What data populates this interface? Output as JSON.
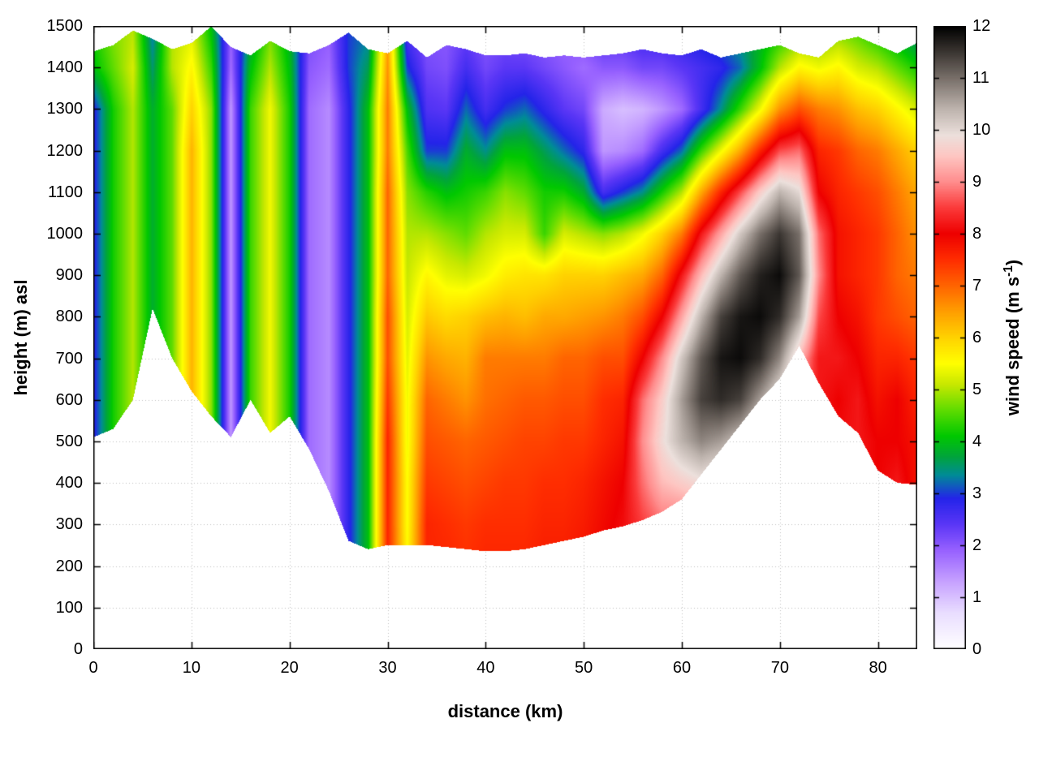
{
  "chart_data": {
    "type": "heatmap",
    "title": "",
    "xlabel": "distance (km)",
    "ylabel": "height (m) asl",
    "colorbar_label": {
      "prefix": "wind speed (m s",
      "superscript": "-1",
      "suffix": ")"
    },
    "xlim": [
      0,
      84
    ],
    "ylim": [
      0,
      1500
    ],
    "clim": [
      0,
      12
    ],
    "x_ticks": [
      0,
      10,
      20,
      30,
      40,
      50,
      60,
      70,
      80
    ],
    "y_ticks": [
      0,
      100,
      200,
      300,
      400,
      500,
      600,
      700,
      800,
      900,
      1000,
      1100,
      1200,
      1300,
      1400,
      1500
    ],
    "cb_ticks": [
      0,
      1,
      2,
      3,
      4,
      5,
      6,
      7,
      8,
      9,
      10,
      11,
      12
    ],
    "grid": true,
    "grid_color": "#c0c0c0",
    "axis_color": "#000000",
    "x_km": [
      0,
      2,
      4,
      6,
      8,
      10,
      12,
      14,
      16,
      18,
      20,
      22,
      24,
      26,
      28,
      30,
      32,
      34,
      36,
      38,
      40,
      42,
      44,
      46,
      48,
      50,
      52,
      54,
      56,
      58,
      60,
      62,
      64,
      66,
      68,
      70,
      72,
      74,
      76,
      78,
      80,
      82,
      84
    ],
    "height_levels_m": [
      0,
      100,
      200,
      300,
      400,
      500,
      600,
      700,
      800,
      900,
      1000,
      1100,
      1200,
      1300,
      1400,
      1500
    ],
    "terrain_m": [
      510,
      530,
      600,
      820,
      700,
      620,
      560,
      510,
      600,
      520,
      560,
      480,
      380,
      260,
      240,
      250,
      250,
      250,
      245,
      240,
      235,
      235,
      240,
      250,
      260,
      270,
      285,
      295,
      310,
      330,
      360,
      420,
      480,
      540,
      600,
      650,
      730,
      640,
      560,
      520,
      430,
      400,
      395
    ],
    "top_boundary_m": [
      1440,
      1455,
      1490,
      1470,
      1445,
      1460,
      1500,
      1450,
      1430,
      1465,
      1440,
      1435,
      1455,
      1485,
      1445,
      1435,
      1465,
      1425,
      1455,
      1445,
      1430,
      1430,
      1435,
      1425,
      1430,
      1425,
      1430,
      1435,
      1445,
      1435,
      1430,
      1445,
      1425,
      1435,
      1445,
      1455,
      1435,
      1425,
      1465,
      1475,
      1455,
      1435,
      1460
    ],
    "grid_note": "wind_speed_grid[i][j]: i indexes x_km (0-84 km, step 2), j indexes height_levels_m (0-1500 m, step 100, bottom to top); values in m/s",
    "wind_speed_grid": [
      [
        2.8,
        2.8,
        2.8,
        2.8,
        2.8,
        2.8,
        2.8,
        2.8,
        2.8,
        2.8,
        2.8,
        2.8,
        2.8,
        2.8,
        4.0,
        4.3
      ],
      [
        4.2,
        4.2,
        4.2,
        4.2,
        4.2,
        4.2,
        4.2,
        4.2,
        4.2,
        4.2,
        4.2,
        4.2,
        4.2,
        4.2,
        4.6,
        4.8
      ],
      [
        5.0,
        5.0,
        5.0,
        5.0,
        5.0,
        5.0,
        5.0,
        5.0,
        5.0,
        5.0,
        5.0,
        5.0,
        5.0,
        5.0,
        5.2,
        5.0
      ],
      [
        3.8,
        3.8,
        3.8,
        3.8,
        3.8,
        3.8,
        3.8,
        3.8,
        3.8,
        3.8,
        3.8,
        3.8,
        3.8,
        3.8,
        3.5,
        3.2
      ],
      [
        4.6,
        4.6,
        4.6,
        4.6,
        4.6,
        4.6,
        4.6,
        4.6,
        4.6,
        4.6,
        4.6,
        4.6,
        4.6,
        4.6,
        5.0,
        5.0
      ],
      [
        6.3,
        6.3,
        6.3,
        6.3,
        6.3,
        6.3,
        6.3,
        6.3,
        6.3,
        6.3,
        6.3,
        6.3,
        6.3,
        6.0,
        5.6,
        5.2
      ],
      [
        4.8,
        4.8,
        4.8,
        4.8,
        4.8,
        4.8,
        4.8,
        4.8,
        4.8,
        4.8,
        4.8,
        4.8,
        4.8,
        4.8,
        4.4,
        4.0
      ],
      [
        1.4,
        1.4,
        1.4,
        1.4,
        1.4,
        1.4,
        1.4,
        1.4,
        1.4,
        1.4,
        1.4,
        1.4,
        1.4,
        1.4,
        1.8,
        2.0
      ],
      [
        4.4,
        4.4,
        4.4,
        4.4,
        4.4,
        4.4,
        4.4,
        4.4,
        4.4,
        4.4,
        4.4,
        4.4,
        4.4,
        4.4,
        4.0,
        3.6
      ],
      [
        5.4,
        5.4,
        5.4,
        5.4,
        5.4,
        5.4,
        5.4,
        5.4,
        5.4,
        5.4,
        5.4,
        5.4,
        5.4,
        5.4,
        5.0,
        4.6
      ],
      [
        4.2,
        4.2,
        4.2,
        4.2,
        4.2,
        4.2,
        4.2,
        4.2,
        4.2,
        4.2,
        4.2,
        4.2,
        4.2,
        4.2,
        4.0,
        3.8
      ],
      [
        1.8,
        1.8,
        1.8,
        1.8,
        1.8,
        1.8,
        1.8,
        1.8,
        1.8,
        1.8,
        1.8,
        1.8,
        1.8,
        1.8,
        2.0,
        2.2
      ],
      [
        1.5,
        1.5,
        1.5,
        1.5,
        1.5,
        1.5,
        1.5,
        1.5,
        1.5,
        1.5,
        1.5,
        1.5,
        1.5,
        1.5,
        1.8,
        2.0
      ],
      [
        2.8,
        2.8,
        2.8,
        2.8,
        2.8,
        2.8,
        2.8,
        2.8,
        2.8,
        2.8,
        2.8,
        2.8,
        2.8,
        2.8,
        3.0,
        3.0
      ],
      [
        4.0,
        4.0,
        4.0,
        4.0,
        4.0,
        4.0,
        4.0,
        4.0,
        4.0,
        4.0,
        4.0,
        4.0,
        4.0,
        4.0,
        3.6,
        3.2
      ],
      [
        7.6,
        7.6,
        7.6,
        7.6,
        7.6,
        7.6,
        7.4,
        7.2,
        7.2,
        7.0,
        7.0,
        7.0,
        6.8,
        6.8,
        6.6,
        6.4
      ],
      [
        5.6,
        5.6,
        5.6,
        5.5,
        5.5,
        5.4,
        5.4,
        5.3,
        5.2,
        5.1,
        5.0,
        4.8,
        4.5,
        4.0,
        3.0,
        2.4
      ],
      [
        7.6,
        7.6,
        7.6,
        7.6,
        7.4,
        7.2,
        7.0,
        6.6,
        6.1,
        5.6,
        5.0,
        4.3,
        3.0,
        2.5,
        2.2,
        2.0
      ],
      [
        7.6,
        7.6,
        7.6,
        7.5,
        7.3,
        7.1,
        6.8,
        6.4,
        5.9,
        5.3,
        4.8,
        4.0,
        3.0,
        2.4,
        2.1,
        2.0
      ],
      [
        7.5,
        7.5,
        7.5,
        7.4,
        7.2,
        7.0,
        6.6,
        6.3,
        6.0,
        5.2,
        4.6,
        4.2,
        3.8,
        3.2,
        2.6,
        2.2
      ],
      [
        7.6,
        7.6,
        7.6,
        7.5,
        7.3,
        7.1,
        6.9,
        6.8,
        6.2,
        5.4,
        5.0,
        4.4,
        3.4,
        2.6,
        2.2,
        2.0
      ],
      [
        7.6,
        7.6,
        7.6,
        7.5,
        7.4,
        7.2,
        7.0,
        6.8,
        6.3,
        5.7,
        5.2,
        4.8,
        4.0,
        3.0,
        2.4,
        2.1
      ],
      [
        7.6,
        7.6,
        7.6,
        7.5,
        7.4,
        7.3,
        7.1,
        6.8,
        6.2,
        5.8,
        5.2,
        4.6,
        4.0,
        3.2,
        2.4,
        2.0
      ],
      [
        7.7,
        7.7,
        7.7,
        7.6,
        7.5,
        7.3,
        7.1,
        6.8,
        6.4,
        5.8,
        4.4,
        4.2,
        3.6,
        2.8,
        2.2,
        1.9
      ],
      [
        7.7,
        7.7,
        7.7,
        7.6,
        7.5,
        7.4,
        7.2,
        7.0,
        6.4,
        6.0,
        5.2,
        4.2,
        3.2,
        2.4,
        2.0,
        1.8
      ],
      [
        7.8,
        7.8,
        7.8,
        7.7,
        7.6,
        7.4,
        7.2,
        7.0,
        6.5,
        6.0,
        5.0,
        3.8,
        2.8,
        2.2,
        1.8,
        2.2
      ],
      [
        8.0,
        8.0,
        8.0,
        7.9,
        7.8,
        7.6,
        7.5,
        7.2,
        6.6,
        6.0,
        4.8,
        2.6,
        1.4,
        1.2,
        2.0,
        2.6
      ],
      [
        8.2,
        8.2,
        8.2,
        8.1,
        8.0,
        7.8,
        7.6,
        7.2,
        6.8,
        6.2,
        5.0,
        3.0,
        1.5,
        1.0,
        2.0,
        2.6
      ],
      [
        8.5,
        8.5,
        8.5,
        8.5,
        8.8,
        9.0,
        8.8,
        8.0,
        7.2,
        6.4,
        5.4,
        3.4,
        1.8,
        1.1,
        2.2,
        2.8
      ],
      [
        8.7,
        8.7,
        8.7,
        8.8,
        9.4,
        9.8,
        9.6,
        9.0,
        8.0,
        7.0,
        6.0,
        4.2,
        2.6,
        1.4,
        2.2,
        2.8
      ],
      [
        8.8,
        8.8,
        8.8,
        8.8,
        9.6,
        10.4,
        10.6,
        10.2,
        9.2,
        8.2,
        6.8,
        5.0,
        3.2,
        1.8,
        2.4,
        3.0
      ],
      [
        8.9,
        8.9,
        8.9,
        8.9,
        9.8,
        10.8,
        11.4,
        11.2,
        10.4,
        9.4,
        8.2,
        6.4,
        4.4,
        2.6,
        2.6,
        3.2
      ],
      [
        9.0,
        9.0,
        9.0,
        9.0,
        9.6,
        10.6,
        11.6,
        11.8,
        11.4,
        10.4,
        9.2,
        7.6,
        5.4,
        3.4,
        2.8,
        3.4
      ],
      [
        9.2,
        9.2,
        9.2,
        9.2,
        9.4,
        10.2,
        11.4,
        11.9,
        11.8,
        11.2,
        10.2,
        8.6,
        6.4,
        4.4,
        3.2,
        3.6
      ],
      [
        9.0,
        9.0,
        9.0,
        9.0,
        9.0,
        9.6,
        10.6,
        11.6,
        11.9,
        11.7,
        11.0,
        9.6,
        7.6,
        5.4,
        4.0,
        3.8
      ],
      [
        8.8,
        8.8,
        8.8,
        8.8,
        8.8,
        9.0,
        9.8,
        10.8,
        11.6,
        11.9,
        11.5,
        10.4,
        8.6,
        6.6,
        5.0,
        4.0
      ],
      [
        8.4,
        8.4,
        8.4,
        8.4,
        8.4,
        8.4,
        8.8,
        9.4,
        10.6,
        11.2,
        11.0,
        10.0,
        8.8,
        7.2,
        5.6,
        4.4
      ],
      [
        8.2,
        8.2,
        8.2,
        8.2,
        8.2,
        8.2,
        8.2,
        8.2,
        8.6,
        9.0,
        8.8,
        8.0,
        7.6,
        6.8,
        5.4,
        4.4
      ],
      [
        8.1,
        8.1,
        8.1,
        8.1,
        8.1,
        8.1,
        8.0,
        8.2,
        8.0,
        7.8,
        7.8,
        7.6,
        7.4,
        6.6,
        5.6,
        4.6
      ],
      [
        8.2,
        8.2,
        8.2,
        8.2,
        8.2,
        8.2,
        8.2,
        8.0,
        7.8,
        7.6,
        7.6,
        7.4,
        7.0,
        6.2,
        5.2,
        4.4
      ],
      [
        8.0,
        8.0,
        8.0,
        8.0,
        8.0,
        8.0,
        7.8,
        7.6,
        7.4,
        7.4,
        7.4,
        7.2,
        6.8,
        6.0,
        5.0,
        4.0
      ],
      [
        8.2,
        8.2,
        8.2,
        8.2,
        8.2,
        8.0,
        8.0,
        7.6,
        7.2,
        7.0,
        7.0,
        6.8,
        6.4,
        5.6,
        4.6,
        3.6
      ],
      [
        7.8,
        7.8,
        7.8,
        7.8,
        7.8,
        7.8,
        7.6,
        7.4,
        7.0,
        6.8,
        6.6,
        6.4,
        6.0,
        5.2,
        4.2,
        3.2
      ]
    ],
    "color_stops": [
      [
        0.0,
        "#ffffff"
      ],
      [
        0.7,
        "#e9ddff"
      ],
      [
        1.3,
        "#c6a1ff"
      ],
      [
        1.9,
        "#9761ff"
      ],
      [
        2.4,
        "#5a36f6"
      ],
      [
        2.9,
        "#2424e9"
      ],
      [
        3.35,
        "#008c96"
      ],
      [
        3.7,
        "#00a43c"
      ],
      [
        4.1,
        "#00c800"
      ],
      [
        4.6,
        "#5fdc00"
      ],
      [
        5.1,
        "#c8e800"
      ],
      [
        5.5,
        "#ffff00"
      ],
      [
        6.0,
        "#ffd200"
      ],
      [
        6.5,
        "#ff9e00"
      ],
      [
        7.0,
        "#ff6400"
      ],
      [
        7.5,
        "#ff2d00"
      ],
      [
        8.0,
        "#ee0000"
      ],
      [
        8.5,
        "#fb3a3a"
      ],
      [
        9.0,
        "#ff8d8d"
      ],
      [
        9.5,
        "#fec6c2"
      ],
      [
        9.9,
        "#ece0dc"
      ],
      [
        10.4,
        "#beb4ae"
      ],
      [
        11.0,
        "#786f69"
      ],
      [
        11.5,
        "#3b3632"
      ],
      [
        12.0,
        "#000000"
      ]
    ],
    "legend_position": "right-colorbar"
  }
}
